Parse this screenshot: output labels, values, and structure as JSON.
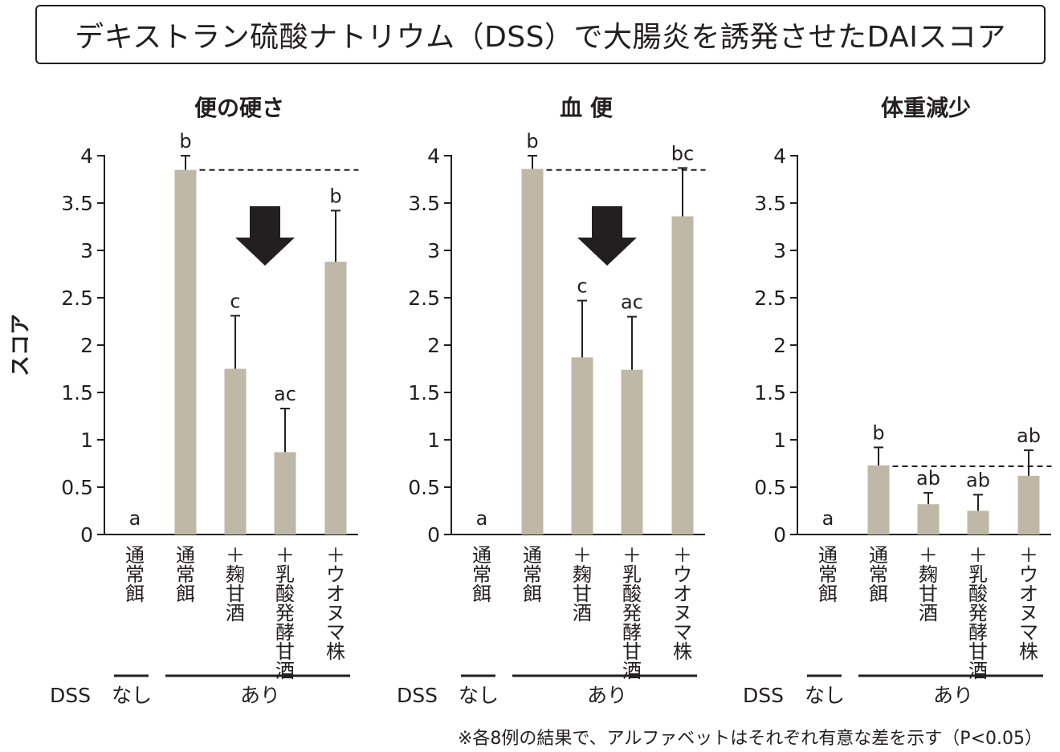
{
  "figure": {
    "title": "デキストラン硫酸ナトリウム（DSS）で大腸炎を誘発させたDAIスコア",
    "ylabel": "スコア",
    "footnote": "※各8例の結果で、アルファベットはそれぞれ有意な差を示す（P<0.05）",
    "dss_label": "DSS",
    "dss_none": "なし",
    "dss_yes": "あり"
  },
  "colors": {
    "bar": "#bfb8a6",
    "ink": "#231f20"
  },
  "chart_data": [
    {
      "type": "bar",
      "title": "便の硬さ",
      "categories": [
        "通常餌",
        "通常餌",
        "＋麹甘酒",
        "＋乳酸発酵甘酒",
        "＋ウオヌマ株"
      ],
      "dss": [
        "なし",
        "あり",
        "あり",
        "あり",
        "あり"
      ],
      "values": [
        0,
        3.85,
        1.75,
        0.87,
        2.88
      ],
      "errors": [
        0,
        0.15,
        0.56,
        0.46,
        0.54
      ],
      "letters": [
        "a",
        "b",
        "c",
        "ac",
        "b"
      ],
      "reference_line": 3.85,
      "arrow": "down",
      "ylim": [
        0,
        4
      ],
      "yticks": [
        "0",
        "0.5",
        "1",
        "1.5",
        "2",
        "2.5",
        "3",
        "3.5",
        "4"
      ]
    },
    {
      "type": "bar",
      "title": "血 便",
      "categories": [
        "通常餌",
        "通常餌",
        "＋麹甘酒",
        "＋乳酸発酵甘酒",
        "＋ウオヌマ株"
      ],
      "dss": [
        "なし",
        "あり",
        "あり",
        "あり",
        "あり"
      ],
      "values": [
        0,
        3.86,
        1.87,
        1.74,
        3.36
      ],
      "errors": [
        0,
        0.14,
        0.6,
        0.56,
        0.51
      ],
      "letters": [
        "a",
        "b",
        "c",
        "ac",
        "bc"
      ],
      "reference_line": 3.85,
      "arrow": "down",
      "ylim": [
        0,
        4
      ],
      "yticks": [
        "0",
        "0.5",
        "1",
        "1.5",
        "2",
        "2.5",
        "3",
        "3.5",
        "4"
      ]
    },
    {
      "type": "bar",
      "title": "体重減少",
      "categories": [
        "通常餌",
        "通常餌",
        "＋麹甘酒",
        "＋乳酸発酵甘酒",
        "＋ウオヌマ株"
      ],
      "dss": [
        "なし",
        "あり",
        "あり",
        "あり",
        "あり"
      ],
      "values": [
        0,
        0.73,
        0.32,
        0.25,
        0.62
      ],
      "errors": [
        0,
        0.19,
        0.12,
        0.17,
        0.27
      ],
      "letters": [
        "a",
        "b",
        "ab",
        "ab",
        "ab"
      ],
      "reference_line": 0.72,
      "ylim": [
        0,
        4
      ],
      "yticks": [
        "0",
        "0.5",
        "1",
        "1.5",
        "2",
        "2.5",
        "3",
        "3.5",
        "4"
      ]
    }
  ]
}
